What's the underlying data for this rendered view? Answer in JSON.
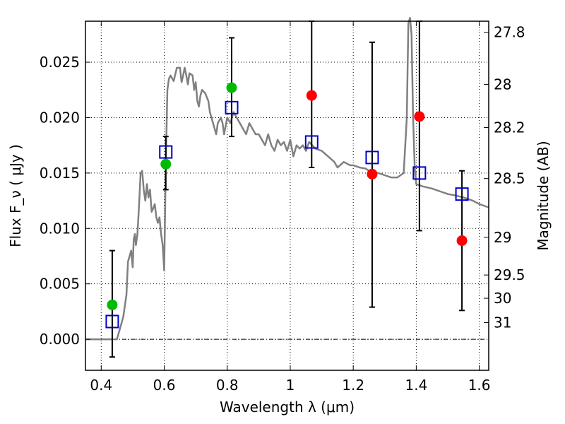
{
  "chart_data": {
    "type": "scatter",
    "xlabel": "Wavelength  λ (μm)",
    "ylabel": "Flux  F_ν  ( μJy )",
    "y2label": "Magnitude (AB)",
    "xlim": [
      0.35,
      1.63
    ],
    "ylim": [
      -0.0028,
      0.0287
    ],
    "x_ticks": [
      0.4,
      0.6,
      0.8,
      1.0,
      1.2,
      1.4,
      1.6
    ],
    "x_tick_labels": [
      "0.4",
      "0.6",
      "0.8",
      "1",
      "1.2",
      "1.4",
      "1.6"
    ],
    "y_ticks": [
      0.0,
      0.005,
      0.01,
      0.015,
      0.02,
      0.025
    ],
    "y_tick_labels": [
      "0.000",
      "0.005",
      "0.010",
      "0.015",
      "0.020",
      "0.025"
    ],
    "y2_ticks": [
      {
        "label": "27.8",
        "flux": 0.0277
      },
      {
        "label": "28",
        "flux": 0.023
      },
      {
        "label": "28.2",
        "flux": 0.0191
      },
      {
        "label": "28.5",
        "flux": 0.0145
      },
      {
        "label": "29",
        "flux": 0.0092
      },
      {
        "label": "29.5",
        "flux": 0.0058
      },
      {
        "label": "30",
        "flux": 0.0037
      },
      {
        "label": "31",
        "flux": 0.0015
      }
    ],
    "grid": true,
    "zero_line": true,
    "colors": {
      "sed": "#808080",
      "green": "#00bb00",
      "red": "#ff0000",
      "model_box": "#0000cc",
      "errorbar": "#000000"
    },
    "sed_curve": [
      [
        0.35,
        0.0
      ],
      [
        0.45,
        0.0
      ],
      [
        0.47,
        0.002
      ],
      [
        0.48,
        0.004
      ],
      [
        0.485,
        0.007
      ],
      [
        0.49,
        0.0075
      ],
      [
        0.495,
        0.008
      ],
      [
        0.5,
        0.0065
      ],
      [
        0.503,
        0.009
      ],
      [
        0.507,
        0.0095
      ],
      [
        0.51,
        0.0085
      ],
      [
        0.515,
        0.0095
      ],
      [
        0.52,
        0.012
      ],
      [
        0.525,
        0.015
      ],
      [
        0.53,
        0.0152
      ],
      [
        0.535,
        0.0135
      ],
      [
        0.54,
        0.0125
      ],
      [
        0.545,
        0.014
      ],
      [
        0.55,
        0.0128
      ],
      [
        0.555,
        0.0135
      ],
      [
        0.56,
        0.0115
      ],
      [
        0.565,
        0.0118
      ],
      [
        0.57,
        0.0122
      ],
      [
        0.575,
        0.011
      ],
      [
        0.58,
        0.0105
      ],
      [
        0.585,
        0.011
      ],
      [
        0.59,
        0.0095
      ],
      [
        0.595,
        0.0085
      ],
      [
        0.6,
        0.0062
      ],
      [
        0.605,
        0.016
      ],
      [
        0.61,
        0.0225
      ],
      [
        0.615,
        0.0235
      ],
      [
        0.62,
        0.0238
      ],
      [
        0.63,
        0.0233
      ],
      [
        0.64,
        0.0245
      ],
      [
        0.65,
        0.0245
      ],
      [
        0.655,
        0.0232
      ],
      [
        0.66,
        0.0238
      ],
      [
        0.665,
        0.0245
      ],
      [
        0.67,
        0.0238
      ],
      [
        0.675,
        0.023
      ],
      [
        0.68,
        0.024
      ],
      [
        0.69,
        0.0238
      ],
      [
        0.695,
        0.0225
      ],
      [
        0.7,
        0.0232
      ],
      [
        0.705,
        0.0215
      ],
      [
        0.71,
        0.021
      ],
      [
        0.715,
        0.022
      ],
      [
        0.72,
        0.0225
      ],
      [
        0.73,
        0.0222
      ],
      [
        0.74,
        0.0215
      ],
      [
        0.745,
        0.0205
      ],
      [
        0.75,
        0.02
      ],
      [
        0.76,
        0.019
      ],
      [
        0.765,
        0.0185
      ],
      [
        0.77,
        0.0195
      ],
      [
        0.78,
        0.02
      ],
      [
        0.785,
        0.0195
      ],
      [
        0.79,
        0.0185
      ],
      [
        0.8,
        0.02
      ],
      [
        0.81,
        0.0195
      ],
      [
        0.82,
        0.0205
      ],
      [
        0.83,
        0.02
      ],
      [
        0.84,
        0.0195
      ],
      [
        0.85,
        0.019
      ],
      [
        0.86,
        0.0185
      ],
      [
        0.87,
        0.0195
      ],
      [
        0.88,
        0.019
      ],
      [
        0.89,
        0.0185
      ],
      [
        0.9,
        0.0185
      ],
      [
        0.91,
        0.018
      ],
      [
        0.92,
        0.0175
      ],
      [
        0.93,
        0.0185
      ],
      [
        0.94,
        0.0175
      ],
      [
        0.95,
        0.017
      ],
      [
        0.96,
        0.018
      ],
      [
        0.97,
        0.0175
      ],
      [
        0.98,
        0.0178
      ],
      [
        0.99,
        0.017
      ],
      [
        1.0,
        0.018
      ],
      [
        1.01,
        0.0165
      ],
      [
        1.02,
        0.0175
      ],
      [
        1.03,
        0.0172
      ],
      [
        1.04,
        0.0175
      ],
      [
        1.05,
        0.017
      ],
      [
        1.06,
        0.0178
      ],
      [
        1.07,
        0.0175
      ],
      [
        1.08,
        0.0172
      ],
      [
        1.1,
        0.017
      ],
      [
        1.12,
        0.0165
      ],
      [
        1.14,
        0.016
      ],
      [
        1.15,
        0.0155
      ],
      [
        1.17,
        0.016
      ],
      [
        1.19,
        0.0157
      ],
      [
        1.2,
        0.0157
      ],
      [
        1.22,
        0.0155
      ],
      [
        1.24,
        0.0154
      ],
      [
        1.26,
        0.015
      ],
      [
        1.28,
        0.015
      ],
      [
        1.3,
        0.0148
      ],
      [
        1.32,
        0.0146
      ],
      [
        1.34,
        0.0146
      ],
      [
        1.36,
        0.015
      ],
      [
        1.37,
        0.02
      ],
      [
        1.375,
        0.0285
      ],
      [
        1.38,
        0.029
      ],
      [
        1.385,
        0.0275
      ],
      [
        1.39,
        0.02
      ],
      [
        1.395,
        0.0155
      ],
      [
        1.4,
        0.014
      ],
      [
        1.42,
        0.0138
      ],
      [
        1.45,
        0.0136
      ],
      [
        1.48,
        0.0133
      ],
      [
        1.5,
        0.0131
      ],
      [
        1.52,
        0.013
      ],
      [
        1.55,
        0.0128
      ],
      [
        1.58,
        0.0125
      ],
      [
        1.6,
        0.0122
      ],
      [
        1.63,
        0.0119
      ]
    ],
    "series": [
      {
        "points": [
          {
            "x": 0.435,
            "y": 0.0031,
            "yerr_low": -0.0016,
            "yerr_high": 0.008,
            "color": "green"
          },
          {
            "x": 0.605,
            "y": 0.0158,
            "yerr_low": 0.0135,
            "yerr_high": 0.0183,
            "color": "green"
          },
          {
            "x": 0.814,
            "y": 0.0227,
            "yerr_low": 0.0183,
            "yerr_high": 0.0272,
            "color": "green"
          },
          {
            "x": 1.068,
            "y": 0.022,
            "yerr_low": 0.0155,
            "yerr_high": 0.0287,
            "color": "red"
          },
          {
            "x": 1.26,
            "y": 0.0149,
            "yerr_low": 0.0029,
            "yerr_high": 0.0268,
            "color": "red"
          },
          {
            "x": 1.41,
            "y": 0.0201,
            "yerr_low": 0.0098,
            "yerr_high": 0.0287,
            "color": "red"
          },
          {
            "x": 1.545,
            "y": 0.0089,
            "yerr_low": 0.0026,
            "yerr_high": 0.0152,
            "color": "red"
          }
        ]
      },
      {
        "points": [
          {
            "x": 0.435,
            "y": 0.0016
          },
          {
            "x": 0.605,
            "y": 0.0169
          },
          {
            "x": 0.814,
            "y": 0.0209
          },
          {
            "x": 1.068,
            "y": 0.0178
          },
          {
            "x": 1.26,
            "y": 0.0164
          },
          {
            "x": 1.41,
            "y": 0.015
          },
          {
            "x": 1.545,
            "y": 0.0131
          }
        ]
      }
    ]
  }
}
